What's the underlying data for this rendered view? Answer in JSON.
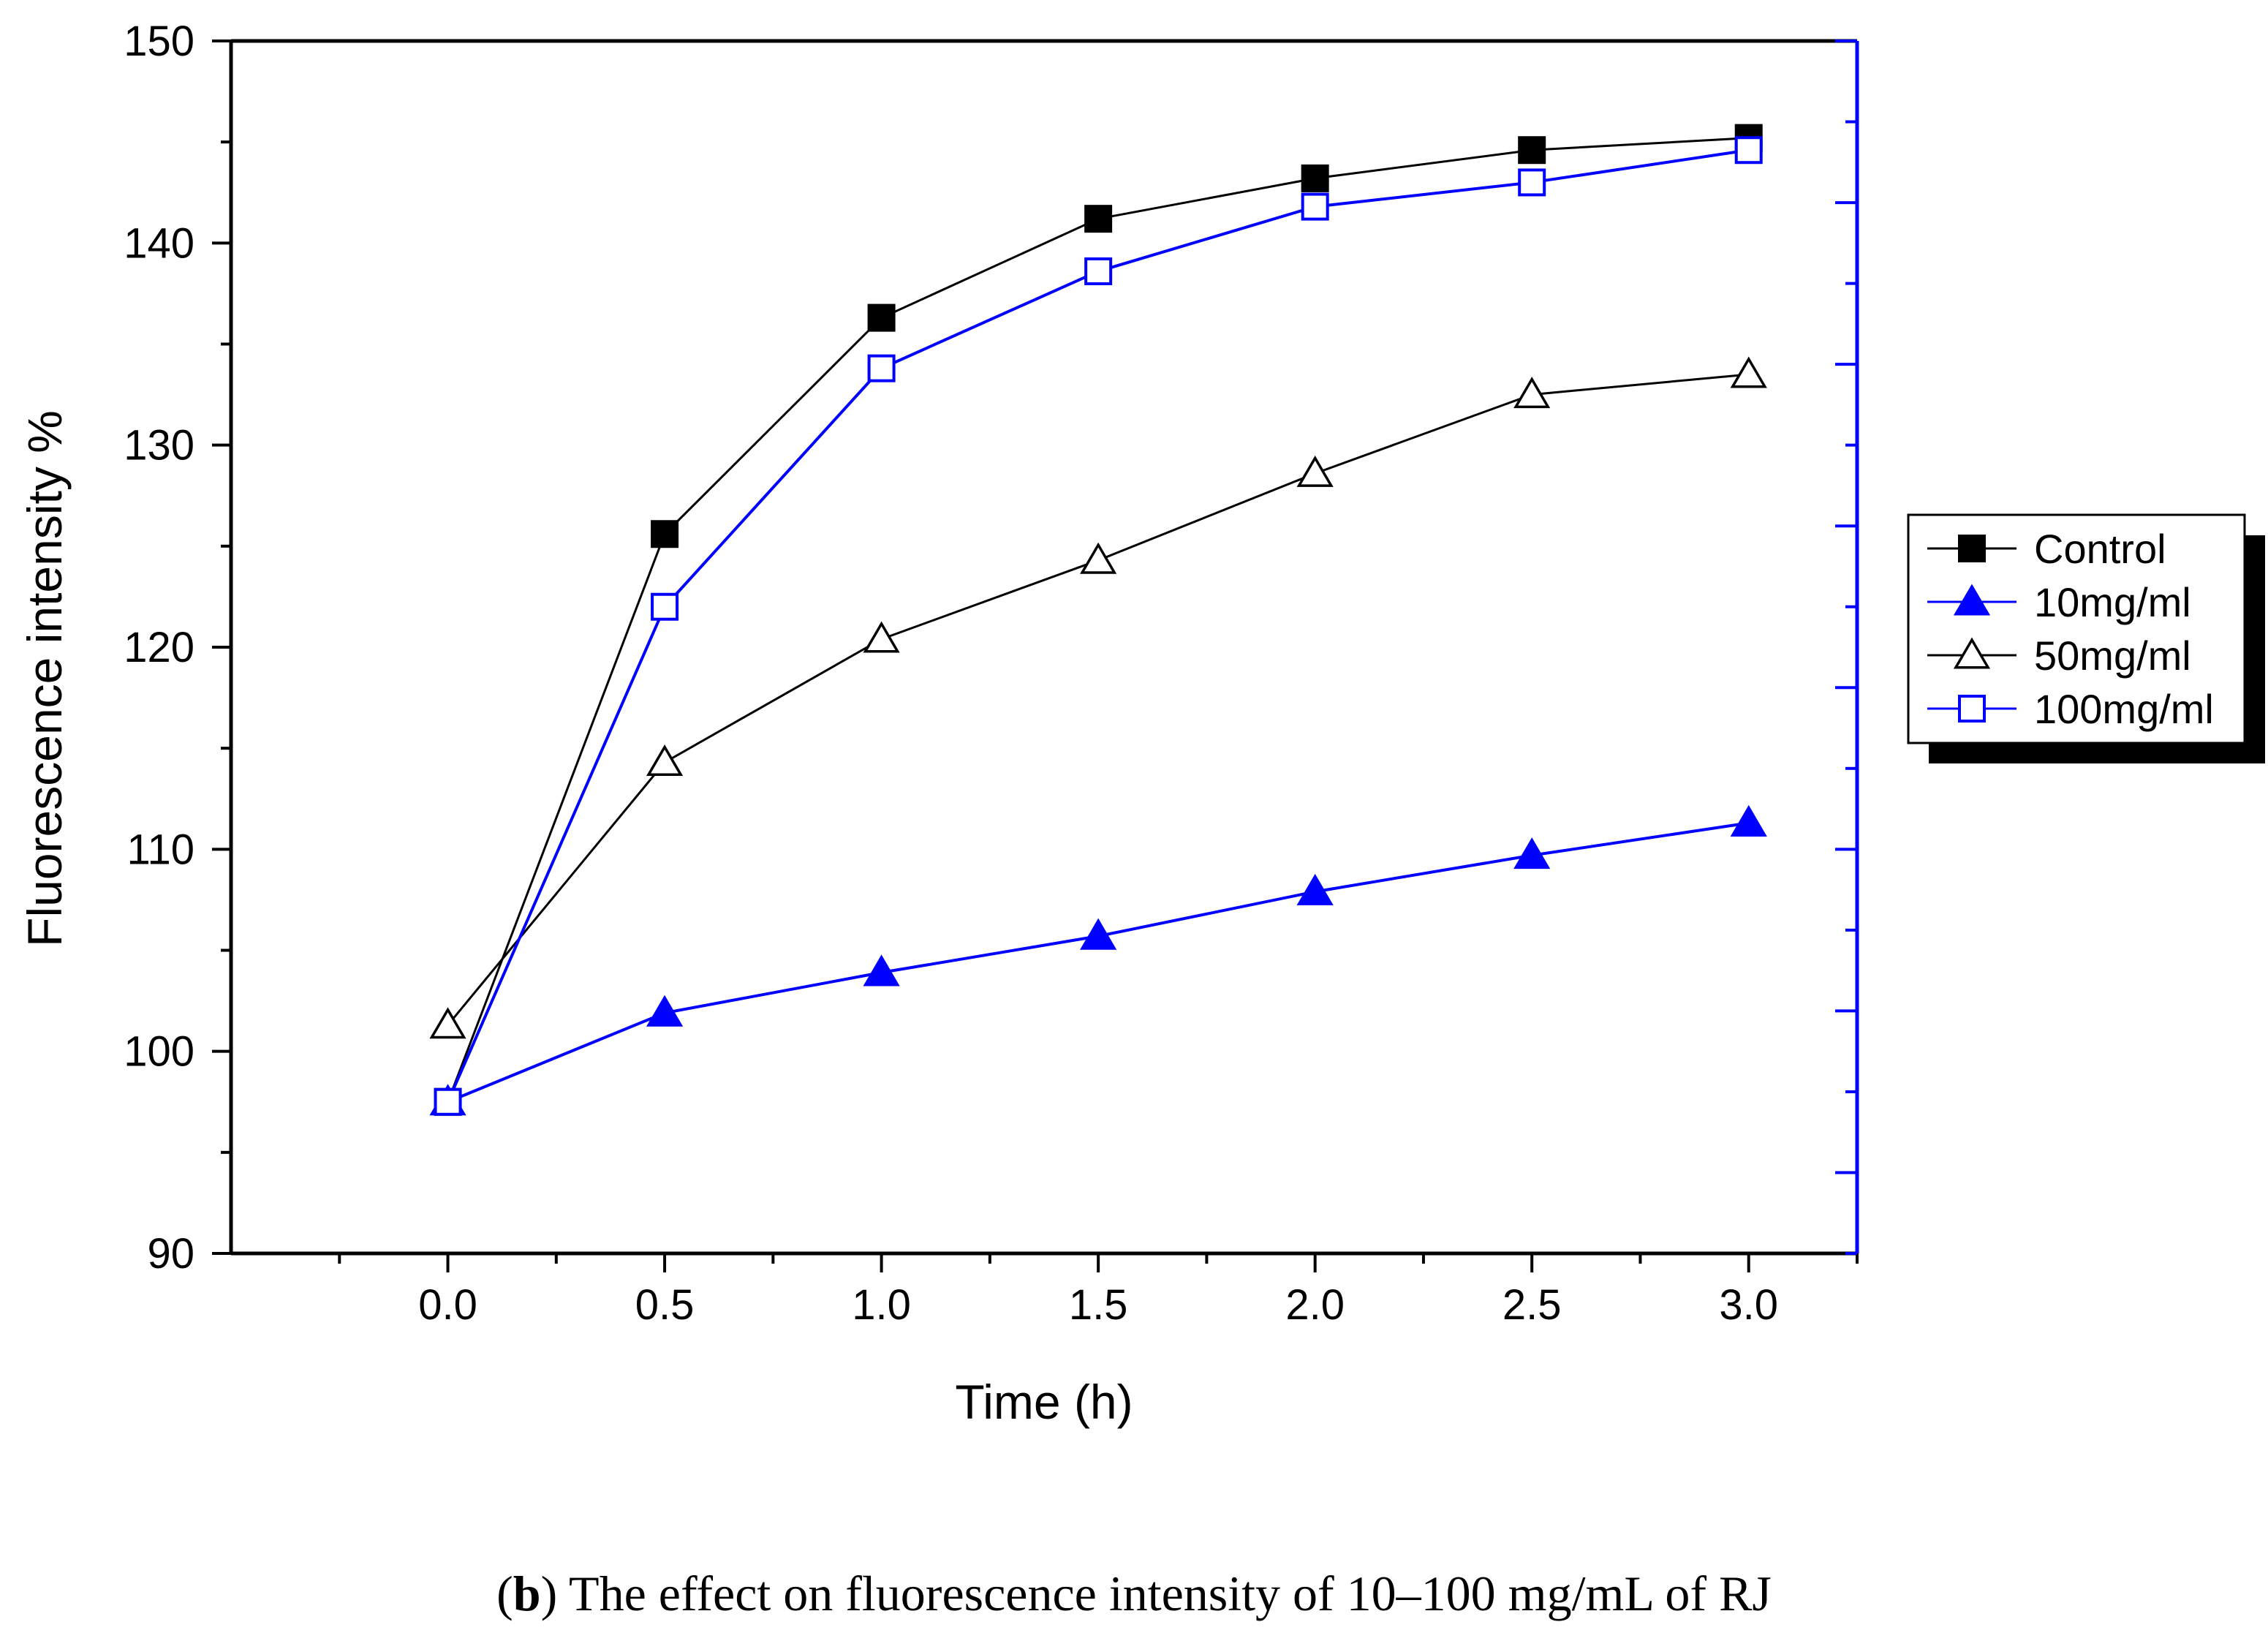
{
  "chart_data": {
    "type": "line",
    "xlabel": "Time (h)",
    "ylabel": "Fluorescence intensity %",
    "xlim": [
      -0.5,
      3.25
    ],
    "ylim": [
      90,
      150
    ],
    "xticks": [
      "0.0",
      "0.5",
      "1.0",
      "1.5",
      "2.0",
      "2.5",
      "3.0"
    ],
    "yticks": [
      "90",
      "100",
      "110",
      "120",
      "130",
      "140",
      "150"
    ],
    "x": [
      0.0,
      0.5,
      1.0,
      1.5,
      2.0,
      2.5,
      3.0
    ],
    "grid": false,
    "legend_position": "right",
    "series": [
      {
        "name": "Control",
        "color": "#000000",
        "marker": "square-filled",
        "values": [
          97.5,
          125.6,
          136.3,
          141.2,
          143.2,
          144.6,
          145.2
        ]
      },
      {
        "name": "10mg/ml",
        "color": "#0000ff",
        "marker": "triangle-filled",
        "values": [
          97.5,
          101.9,
          103.9,
          105.7,
          107.9,
          109.7,
          111.3
        ]
      },
      {
        "name": "50mg/ml",
        "color": "#000000",
        "marker": "triangle-open",
        "values": [
          101.3,
          114.3,
          120.4,
          124.3,
          128.6,
          132.5,
          133.5
        ]
      },
      {
        "name": "100mg/ml",
        "color": "#0000ff",
        "marker": "square-open",
        "values": [
          97.5,
          122.0,
          133.8,
          138.6,
          141.8,
          143.0,
          144.6
        ]
      }
    ]
  },
  "caption": {
    "label": "b",
    "paren_open": "(",
    "paren_close": ")",
    "text": " The effect on fluorescence intensity of 10–100 mg/mL of RJ"
  }
}
